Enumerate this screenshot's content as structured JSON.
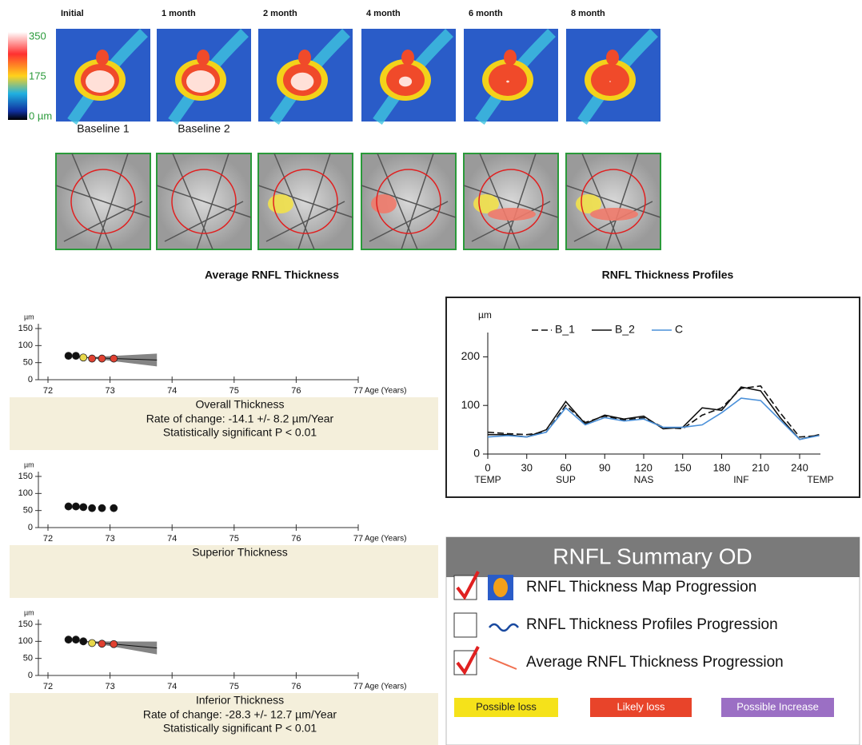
{
  "maps": {
    "labels": [
      "Initial",
      "1 month",
      "2 month",
      "4 month",
      "6 month",
      "8 month"
    ],
    "baselines": [
      "Baseline 1",
      "Baseline 2"
    ],
    "colorbar_labels": [
      "350",
      "175",
      "0 µm"
    ]
  },
  "section_titles": [
    "Average RNFL Thickness",
    "RNFL Thickness Profiles"
  ],
  "chart_data": [
    {
      "type": "scatter",
      "ylabel": "µm",
      "xlabel": "Age (Years)",
      "subtitle": "Overall Thickness",
      "notes": [
        "Rate of change: -14.1 +/- 8.2 µm/Year",
        "Statistically significant P < 0.01"
      ],
      "x": [
        72.33,
        72.45,
        72.57,
        72.71,
        72.87,
        73.06
      ],
      "values": [
        70,
        70,
        65,
        62,
        62,
        62
      ],
      "point_colors": [
        "#111111",
        "#111111",
        "#e8d84a",
        "#e04030",
        "#e04030",
        "#e04030"
      ],
      "trend": true,
      "xlim": [
        72,
        77
      ],
      "xticks": [
        72,
        73,
        74,
        75,
        76,
        77
      ],
      "ylim": [
        0,
        150
      ],
      "yticks": [
        0,
        50,
        100,
        150
      ]
    },
    {
      "type": "scatter",
      "ylabel": "µm",
      "xlabel": "Age (Years)",
      "subtitle": "Superior Thickness",
      "notes": [],
      "x": [
        72.33,
        72.45,
        72.57,
        72.71,
        72.87,
        73.06
      ],
      "values": [
        62,
        62,
        60,
        57,
        57,
        57
      ],
      "point_colors": [
        "#111111",
        "#111111",
        "#111111",
        "#111111",
        "#111111",
        "#111111"
      ],
      "trend": false,
      "xlim": [
        72,
        77
      ],
      "xticks": [
        72,
        73,
        74,
        75,
        76,
        77
      ],
      "ylim": [
        0,
        150
      ],
      "yticks": [
        0,
        50,
        100,
        150
      ]
    },
    {
      "type": "scatter",
      "ylabel": "µm",
      "xlabel": "Age (Years)",
      "subtitle": "Inferior Thickness",
      "notes": [
        "Rate of change: -28.3 +/- 12.7 µm/Year",
        "Statistically significant P < 0.01"
      ],
      "x": [
        72.33,
        72.45,
        72.57,
        72.71,
        72.87,
        73.06
      ],
      "values": [
        105,
        105,
        100,
        95,
        93,
        92
      ],
      "point_colors": [
        "#111111",
        "#111111",
        "#111111",
        "#e8d84a",
        "#e04030",
        "#e04030"
      ],
      "trend": true,
      "xlim": [
        72,
        77
      ],
      "xticks": [
        72,
        73,
        74,
        75,
        76,
        77
      ],
      "ylim": [
        0,
        150
      ],
      "yticks": [
        0,
        50,
        100,
        150
      ]
    },
    {
      "type": "line",
      "ylabel": "µm",
      "x": [
        0,
        15,
        30,
        45,
        60,
        75,
        90,
        105,
        120,
        135,
        150,
        165,
        180,
        195,
        210,
        225,
        240,
        255
      ],
      "series": [
        {
          "name": "B_1",
          "color": "#111111",
          "dash": true,
          "values": [
            45,
            42,
            40,
            45,
            100,
            65,
            78,
            70,
            75,
            55,
            52,
            80,
            95,
            135,
            140,
            85,
            35,
            38
          ]
        },
        {
          "name": "B_2",
          "color": "#111111",
          "dash": false,
          "values": [
            40,
            40,
            35,
            50,
            108,
            62,
            80,
            72,
            78,
            52,
            55,
            95,
            90,
            138,
            130,
            75,
            30,
            40
          ]
        },
        {
          "name": "C",
          "color": "#4a90d9",
          "dash": false,
          "values": [
            35,
            38,
            35,
            45,
            95,
            60,
            75,
            68,
            72,
            55,
            55,
            60,
            85,
            115,
            110,
            70,
            30,
            38
          ]
        }
      ],
      "xlim": [
        0,
        256
      ],
      "xticks": [
        0,
        30,
        60,
        90,
        120,
        150,
        180,
        210,
        240
      ],
      "region_labels": [
        {
          "value": 0,
          "label": "TEMP"
        },
        {
          "value": 60,
          "label": "SUP"
        },
        {
          "value": 120,
          "label": "NAS"
        },
        {
          "value": 195,
          "label": "INF"
        },
        {
          "value": 256,
          "label": "TEMP"
        }
      ],
      "ylim": [
        0,
        250
      ],
      "yticks": [
        0,
        100,
        200
      ]
    }
  ],
  "summary": {
    "title": "RNFL Summary OD",
    "items": [
      {
        "label": "RNFL Thickness Map Progression",
        "checked": true
      },
      {
        "label": "RNFL Thickness Profiles Progression",
        "checked": false
      },
      {
        "label": "Average RNFL Thickness Progression",
        "checked": true
      }
    ],
    "legend": [
      {
        "label": "Possible loss",
        "color": "#f5e21a"
      },
      {
        "label": "Likely loss",
        "color": "#e8442a"
      },
      {
        "label": "Possible Increase",
        "color": "#9b6fc4"
      }
    ]
  }
}
